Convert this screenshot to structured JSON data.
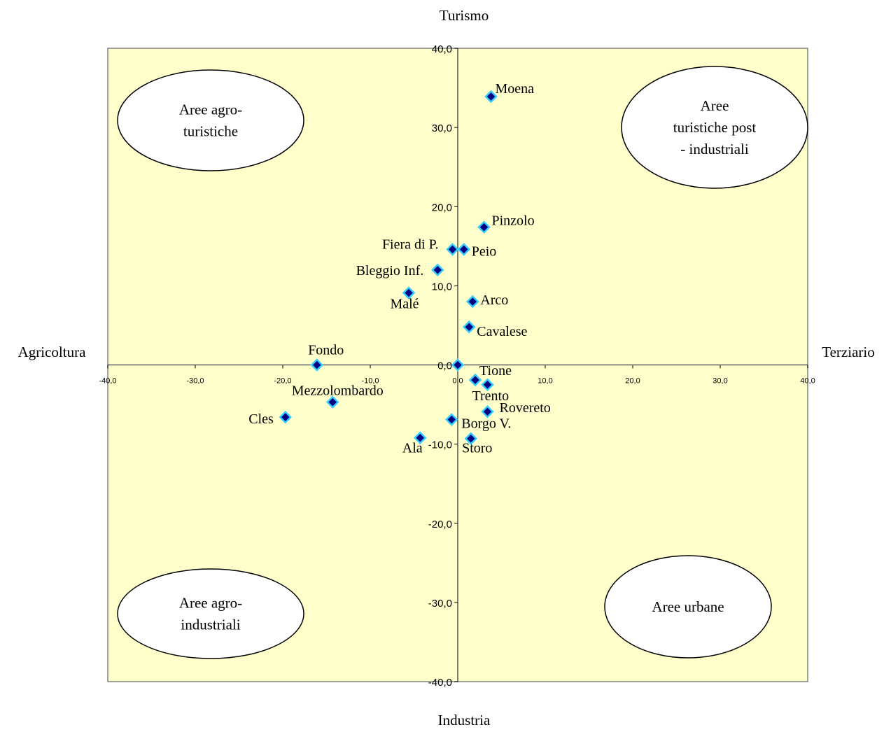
{
  "chart_data": {
    "type": "scatter",
    "xlim": [
      -40,
      40
    ],
    "ylim": [
      -40,
      40
    ],
    "tick_step": 10,
    "xticks": [
      "-40,0",
      "-30,0",
      "-20,0",
      "-10,0",
      "0,0",
      "10,0",
      "20,0",
      "30,0",
      "40,0"
    ],
    "yticks": [
      "40,0",
      "30,0",
      "20,0",
      "10,0",
      "0,0",
      "-10,0",
      "-20,0",
      "-30,0",
      "-40,0"
    ],
    "axis_titles": {
      "top": "Turismo",
      "bottom": "Industria",
      "left": "Agricoltura",
      "right": "Terziario"
    },
    "plot_background": "#FFFFCC",
    "marker_color": "#000080",
    "marker_edge": "#33CCFF",
    "points": [
      {
        "label": "Moena",
        "x": 3.8,
        "y": 33.9
      },
      {
        "label": "Pinzolo",
        "x": 3.0,
        "y": 17.4
      },
      {
        "label": "Fiera di P.",
        "x": -0.6,
        "y": 14.6
      },
      {
        "label": "Peio",
        "x": 0.7,
        "y": 14.6
      },
      {
        "label": "Bleggio Inf.",
        "x": -2.3,
        "y": 12.0
      },
      {
        "label": "Malé",
        "x": -5.6,
        "y": 9.1
      },
      {
        "label": "Arco",
        "x": 1.7,
        "y": 8.0
      },
      {
        "label": "Cavalese",
        "x": 1.3,
        "y": 4.8
      },
      {
        "label": "Fondo",
        "x": -16.1,
        "y": 0.0
      },
      {
        "label": "",
        "x": 0.0,
        "y": 0.0
      },
      {
        "label": "Tione",
        "x": 2.0,
        "y": -1.9
      },
      {
        "label": "Trento",
        "x": 3.4,
        "y": -2.5
      },
      {
        "label": "Mezzolombardo",
        "x": -14.3,
        "y": -4.7
      },
      {
        "label": "Rovereto",
        "x": 3.4,
        "y": -5.9
      },
      {
        "label": "Cles",
        "x": -19.7,
        "y": -6.6
      },
      {
        "label": "Borgo V.",
        "x": -0.7,
        "y": -6.9
      },
      {
        "label": "Ala",
        "x": -4.3,
        "y": -9.2
      },
      {
        "label": "Storo",
        "x": 1.5,
        "y": -9.3
      }
    ],
    "annotations": [
      {
        "text": [
          "Aree agro-",
          "turistiche"
        ]
      },
      {
        "text": [
          "Aree",
          "turistiche post",
          "- industriali"
        ]
      },
      {
        "text": [
          "Aree agro-",
          "industriali"
        ]
      },
      {
        "text": [
          "Aree urbane"
        ]
      }
    ]
  }
}
